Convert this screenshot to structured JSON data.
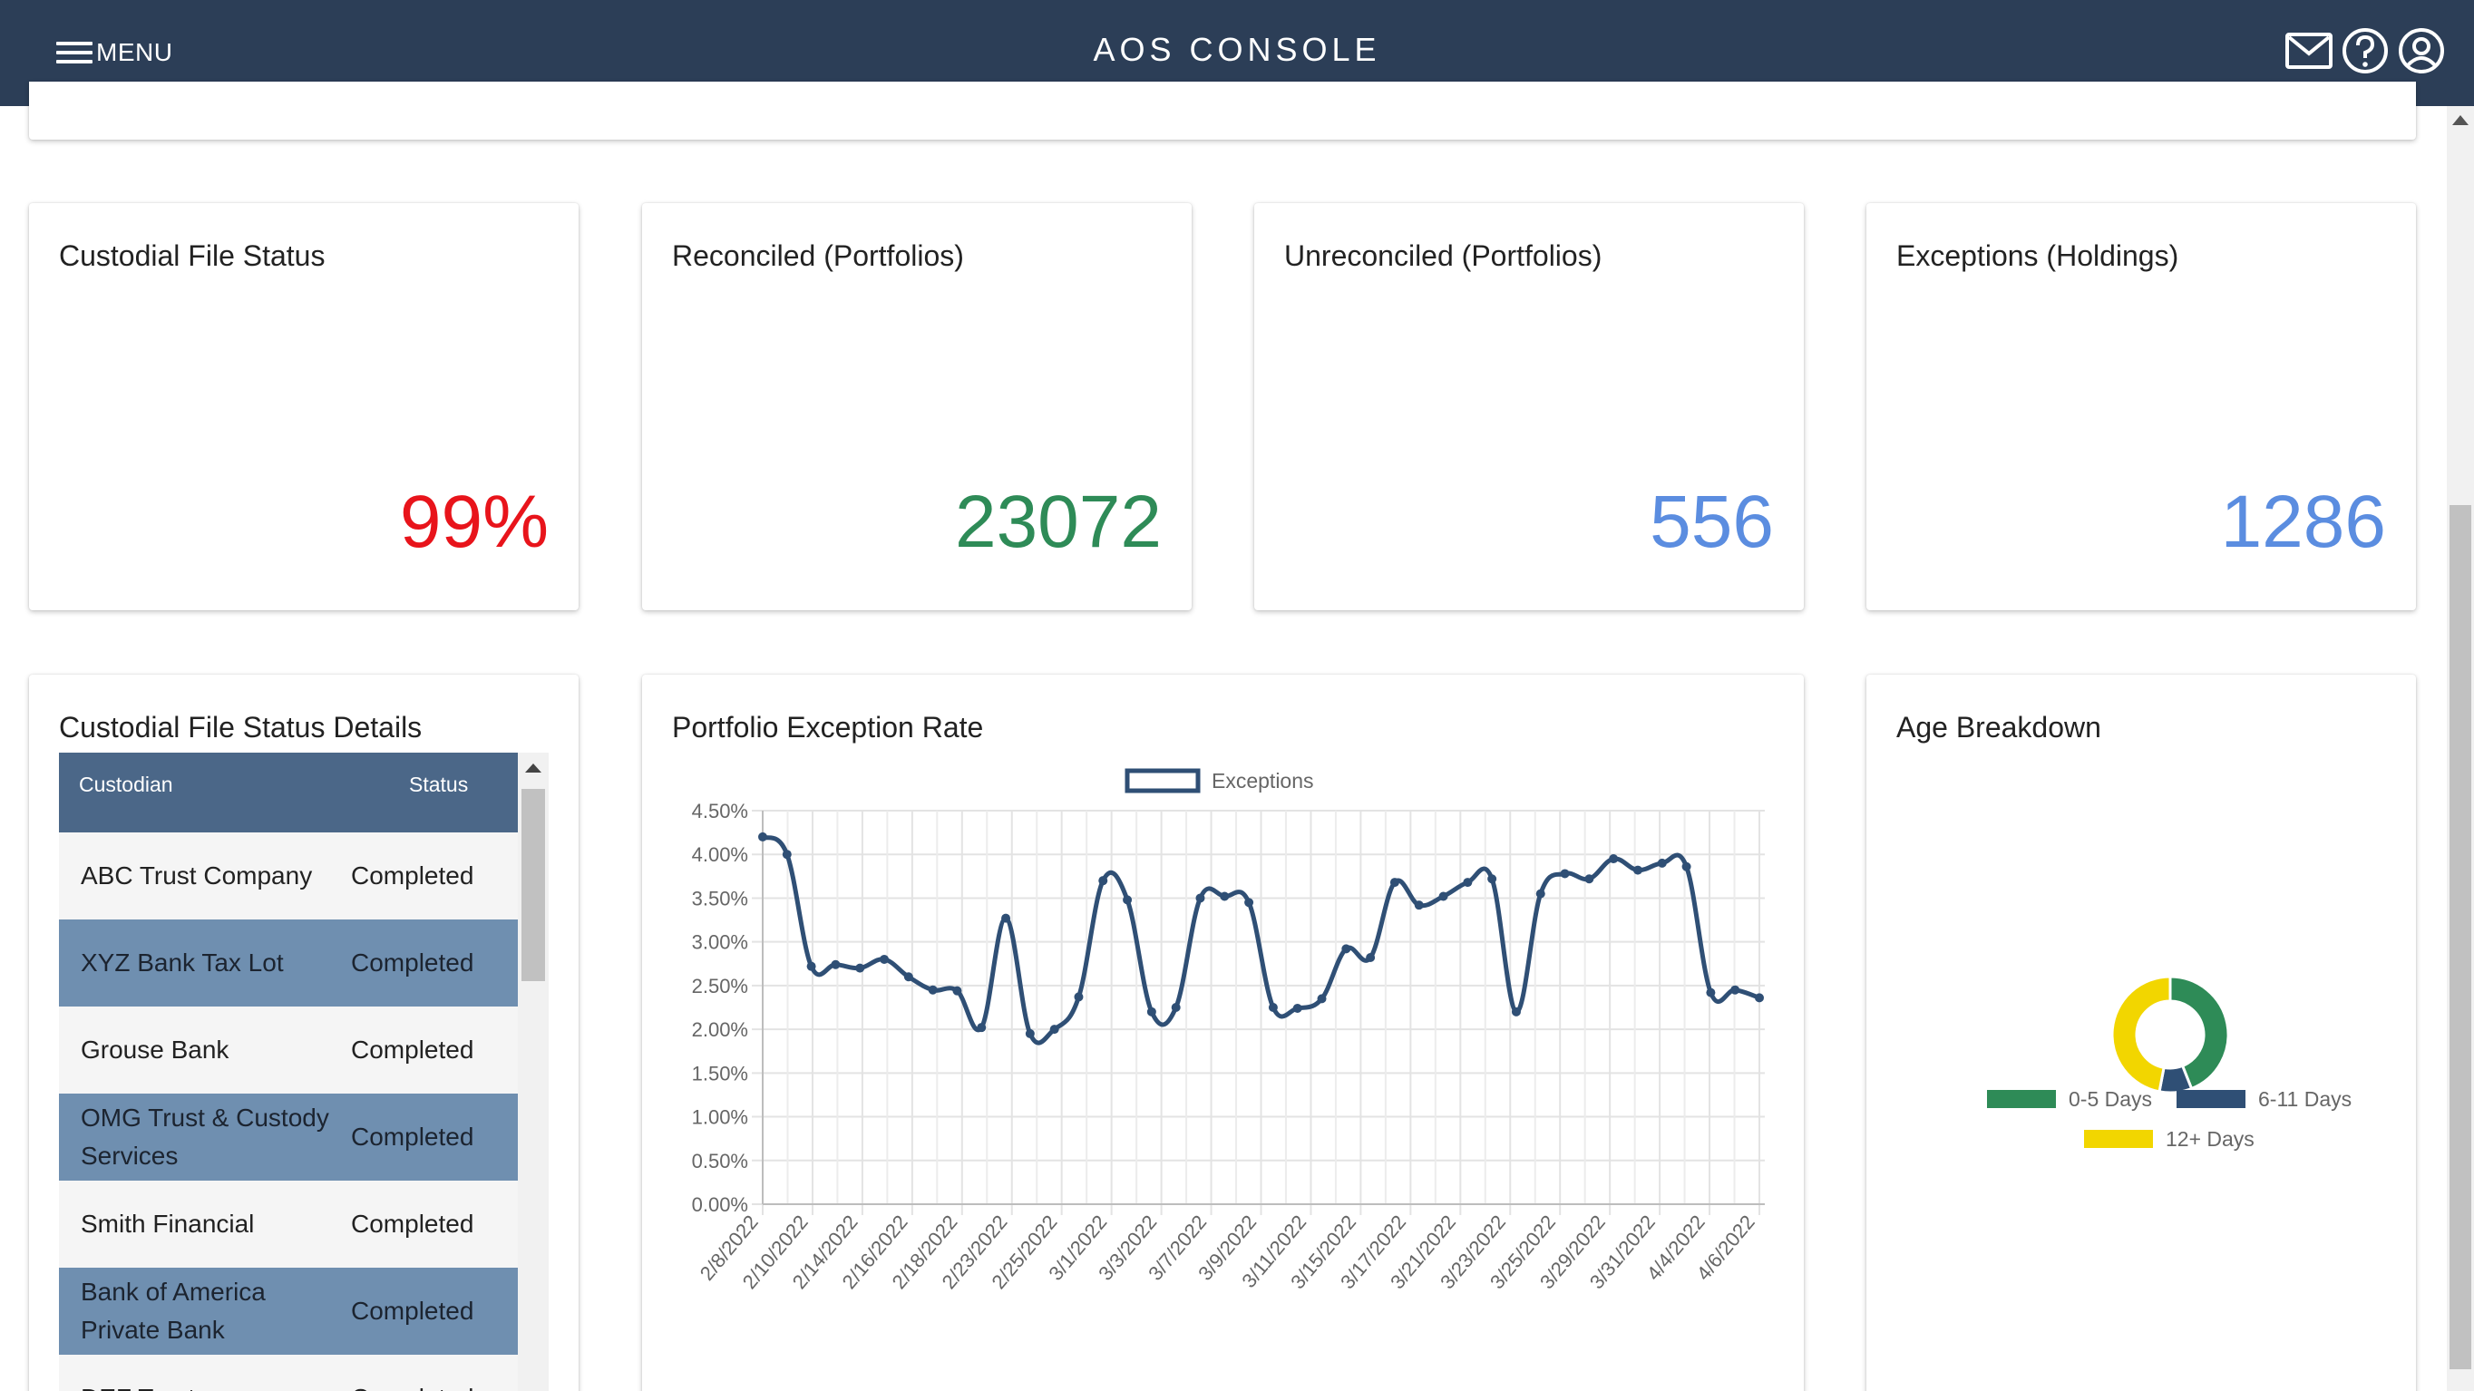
{
  "header": {
    "menu_label": "MENU",
    "title": "AOS CONSOLE",
    "icons": [
      "mail-icon",
      "help-icon",
      "account-icon"
    ]
  },
  "kpis": [
    {
      "title": "Custodial File Status",
      "value": "99%",
      "color": "#e8141b"
    },
    {
      "title": "Reconciled (Portfolios)",
      "value": "23072",
      "color": "#2e8b57"
    },
    {
      "title": "Unreconciled (Portfolios)",
      "value": "556",
      "color": "#5b8de0"
    },
    {
      "title": "Exceptions (Holdings)",
      "value": "1286",
      "color": "#5b8de0"
    }
  ],
  "details": {
    "title": "Custodial File Status Details",
    "columns": [
      "Custodian",
      "Status"
    ],
    "rows": [
      {
        "custodian": "ABC Trust Company",
        "status": "Completed"
      },
      {
        "custodian": "XYZ Bank Tax Lot",
        "status": "Completed"
      },
      {
        "custodian": "Grouse Bank",
        "status": "Completed"
      },
      {
        "custodian": "OMG Trust & Custody Services",
        "status": "Completed"
      },
      {
        "custodian": "Smith Financial",
        "status": "Completed"
      },
      {
        "custodian": "Bank of America Private Bank",
        "status": "Completed"
      },
      {
        "custodian": "DEF Trust",
        "status": "Completed"
      }
    ]
  },
  "exception_chart": {
    "title": "Portfolio Exception Rate"
  },
  "age_chart": {
    "title": "Age Breakdown"
  },
  "chart_data": [
    {
      "type": "line",
      "series": [
        {
          "name": "Exceptions",
          "color": "#2f4f75",
          "values": [
            4.2,
            4.0,
            2.72,
            2.74,
            2.7,
            2.8,
            2.6,
            2.45,
            2.44,
            2.02,
            3.27,
            1.95,
            2.0,
            2.37,
            3.7,
            3.48,
            2.2,
            2.25,
            3.5,
            3.52,
            3.45,
            2.25,
            2.24,
            2.35,
            2.92,
            2.82,
            3.68,
            3.42,
            3.52,
            3.68,
            3.72,
            2.2,
            3.55,
            3.78,
            3.72,
            3.95,
            3.82,
            3.9,
            3.86,
            2.42,
            2.45,
            2.36
          ]
        }
      ],
      "x_tick_labels": [
        "2/8/2022",
        "2/10/2022",
        "2/14/2022",
        "2/16/2022",
        "2/18/2022",
        "2/23/2022",
        "2/25/2022",
        "3/1/2022",
        "3/3/2022",
        "3/7/2022",
        "3/9/2022",
        "3/11/2022",
        "3/15/2022",
        "3/17/2022",
        "3/21/2022",
        "3/23/2022",
        "3/25/2022",
        "3/29/2022",
        "3/31/2022",
        "4/4/2022",
        "4/6/2022"
      ],
      "y_tick_labels": [
        "0.00%",
        "0.50%",
        "1.00%",
        "1.50%",
        "2.00%",
        "2.50%",
        "3.00%",
        "3.50%",
        "4.00%",
        "4.50%"
      ],
      "ylim": [
        0,
        4.5
      ],
      "grid": true,
      "legend": "top"
    },
    {
      "type": "pie",
      "slices": [
        {
          "label": "0-5 Days",
          "value": 44,
          "color": "#2e8b57"
        },
        {
          "label": "6-11 Days",
          "value": 9,
          "color": "#2f4f75"
        },
        {
          "label": "12+ Days",
          "value": 47,
          "color": "#f2d600"
        }
      ],
      "legend": "bottom"
    }
  ]
}
